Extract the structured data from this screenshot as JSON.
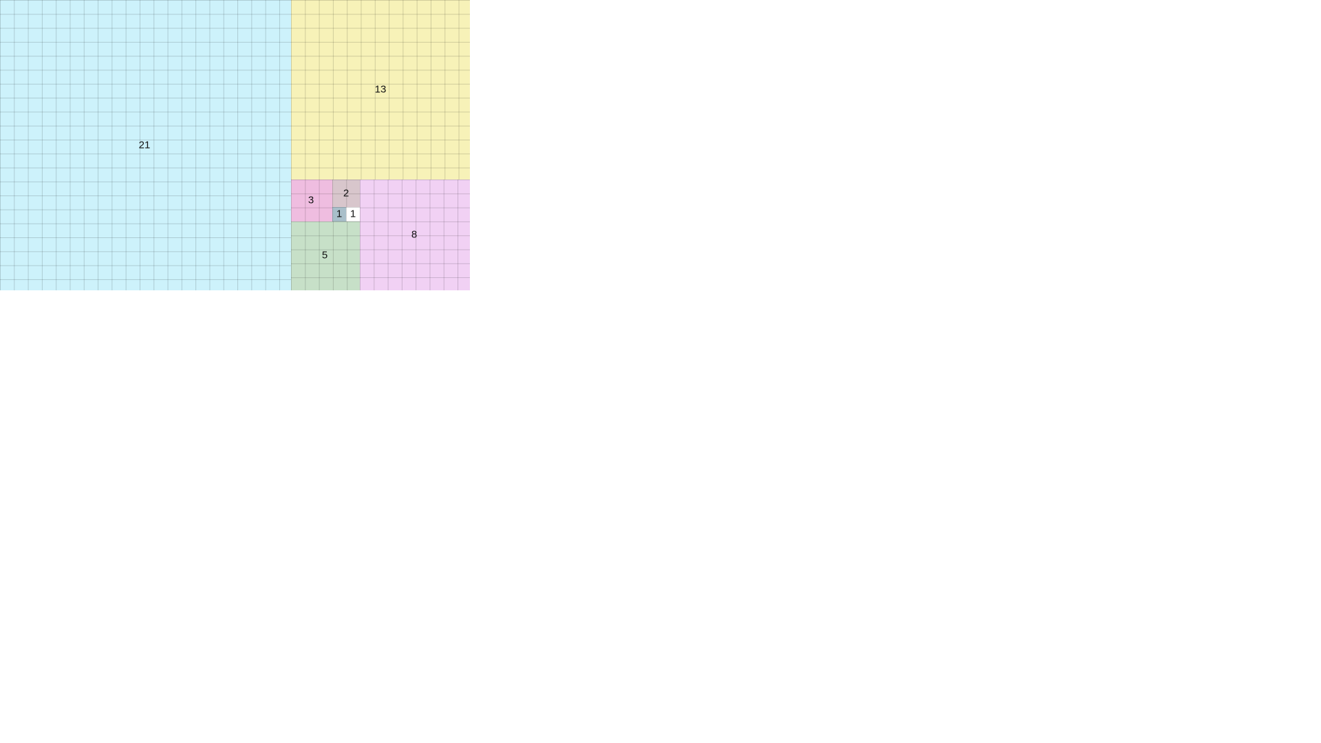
{
  "diagram": {
    "squares": [
      {
        "label": "21",
        "color": "#cdf2fb"
      },
      {
        "label": "13",
        "color": "#f7f2b8"
      },
      {
        "label": "8",
        "color": "#f1d1f4"
      },
      {
        "label": "5",
        "color": "#c7e0c8"
      },
      {
        "label": "3",
        "color": "#efbde0"
      },
      {
        "label": "2",
        "color": "#d8c6cc"
      },
      {
        "label": "1",
        "color": "#a9bfca"
      },
      {
        "label": "1",
        "color": "#ffffff"
      }
    ]
  }
}
